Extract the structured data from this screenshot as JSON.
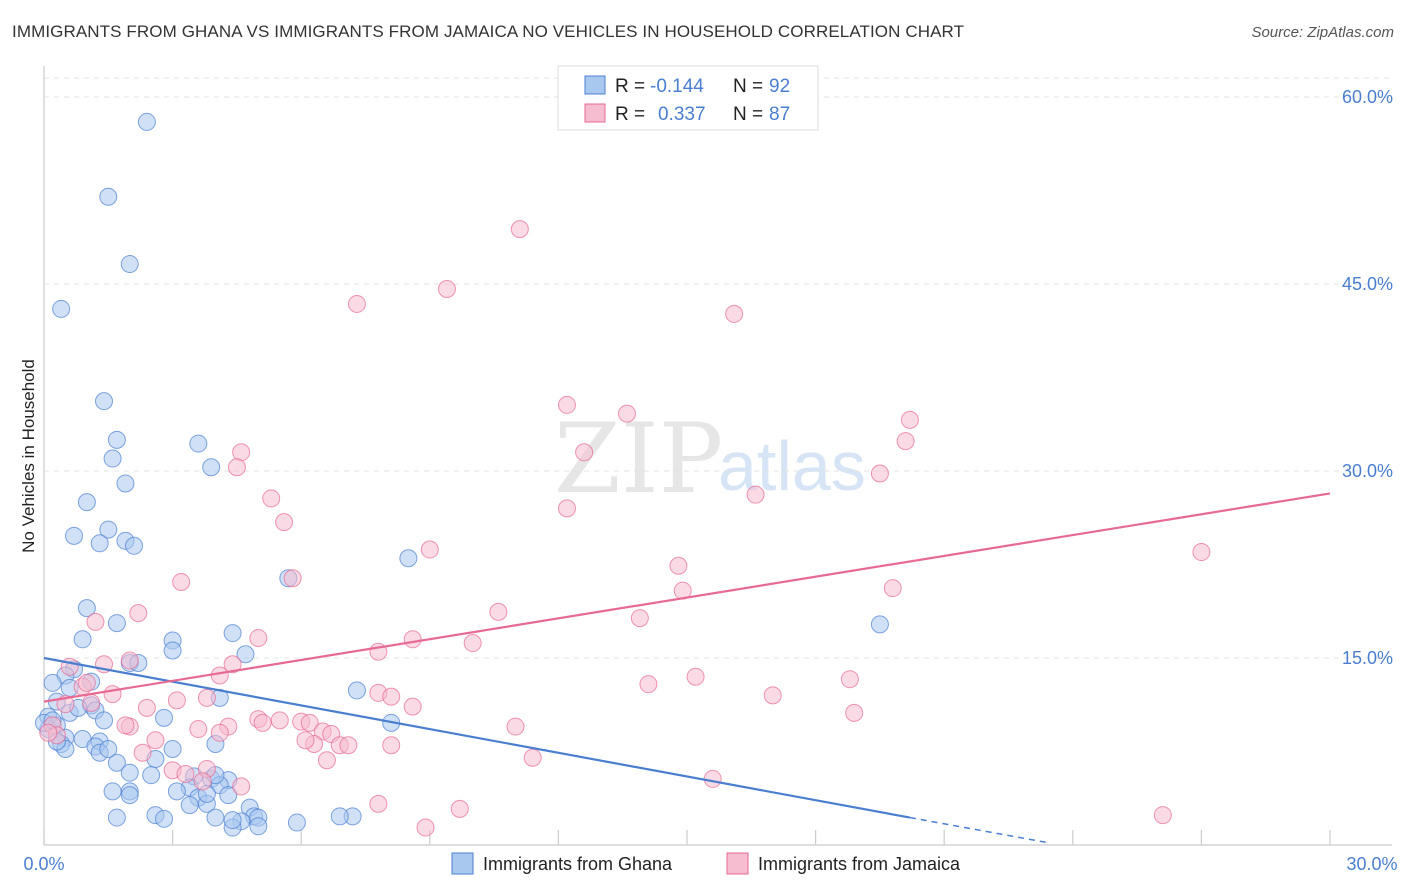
{
  "title": "IMMIGRANTS FROM GHANA VS IMMIGRANTS FROM JAMAICA NO VEHICLES IN HOUSEHOLD CORRELATION CHART",
  "source": "Source: ZipAtlas.com",
  "watermark": {
    "part1": "ZIP",
    "part2": "atlas"
  },
  "legend": {
    "rows": [
      {
        "r_label": "R =",
        "r_value": "-0.144",
        "n_label": "N =",
        "n_value": "92",
        "color": "#a9c8f0"
      },
      {
        "r_label": "R =",
        "r_value": "0.337",
        "n_label": "N =",
        "n_value": "87",
        "color": "#f6bcd0"
      }
    ]
  },
  "bottom_legend": [
    "Immigrants from Ghana",
    "Immigrants from Jamaica"
  ],
  "chart_data": {
    "type": "scatter",
    "title": "IMMIGRANTS FROM GHANA VS IMMIGRANTS FROM JAMAICA NO VEHICLES IN HOUSEHOLD CORRELATION CHART",
    "xlabel": "",
    "ylabel": "No Vehicles in Household",
    "xlim": [
      0,
      30
    ],
    "ylim": [
      0,
      62
    ],
    "x_tick_labels": [
      "0.0%",
      "30.0%"
    ],
    "y_ticks": [
      15,
      30,
      45,
      60
    ],
    "y_tick_labels": [
      "15.0%",
      "30.0%",
      "45.0%",
      "60.0%"
    ],
    "series": [
      {
        "name": "Immigrants from Ghana",
        "color": "#4a7fd0",
        "fill": "#a9c8f0",
        "trend": {
          "x0": 0,
          "y0": 15.0,
          "x1": 20.2,
          "y1": 2.2,
          "dash_to_x": 23.4,
          "dash_to_y": 0.2
        },
        "points": [
          [
            2.4,
            58.0
          ],
          [
            1.5,
            52.0
          ],
          [
            2.0,
            46.6
          ],
          [
            0.4,
            43.0
          ],
          [
            1.4,
            35.6
          ],
          [
            1.7,
            32.5
          ],
          [
            3.6,
            32.2
          ],
          [
            1.6,
            31.0
          ],
          [
            3.9,
            30.3
          ],
          [
            1.9,
            29.0
          ],
          [
            1.0,
            27.5
          ],
          [
            0.7,
            24.8
          ],
          [
            1.5,
            25.3
          ],
          [
            1.9,
            24.4
          ],
          [
            2.1,
            24.0
          ],
          [
            1.3,
            24.2
          ],
          [
            8.5,
            23.0
          ],
          [
            5.7,
            21.4
          ],
          [
            1.0,
            19.0
          ],
          [
            1.7,
            17.8
          ],
          [
            4.4,
            17.0
          ],
          [
            0.9,
            16.5
          ],
          [
            3.0,
            16.4
          ],
          [
            2.0,
            14.6
          ],
          [
            4.7,
            15.3
          ],
          [
            3.0,
            15.6
          ],
          [
            0.7,
            14.1
          ],
          [
            0.5,
            13.6
          ],
          [
            1.1,
            13.1
          ],
          [
            0.2,
            13.0
          ],
          [
            0.6,
            12.6
          ],
          [
            7.3,
            12.4
          ],
          [
            4.1,
            11.8
          ],
          [
            0.3,
            11.5
          ],
          [
            1.1,
            11.2
          ],
          [
            1.2,
            10.8
          ],
          [
            0.6,
            10.6
          ],
          [
            0.1,
            10.3
          ],
          [
            1.4,
            10.0
          ],
          [
            2.8,
            10.2
          ],
          [
            8.1,
            9.8
          ],
          [
            0.3,
            9.6
          ],
          [
            0.1,
            9.3
          ],
          [
            0.5,
            8.6
          ],
          [
            0.9,
            8.5
          ],
          [
            1.3,
            8.3
          ],
          [
            0.4,
            8.1
          ],
          [
            1.2,
            7.9
          ],
          [
            0.5,
            7.7
          ],
          [
            3.0,
            7.7
          ],
          [
            4.0,
            8.1
          ],
          [
            1.3,
            7.4
          ],
          [
            2.6,
            6.9
          ],
          [
            1.7,
            6.6
          ],
          [
            2.0,
            5.8
          ],
          [
            2.5,
            5.6
          ],
          [
            3.5,
            5.5
          ],
          [
            3.9,
            5.3
          ],
          [
            4.3,
            5.2
          ],
          [
            4.1,
            4.8
          ],
          [
            3.4,
            4.6
          ],
          [
            3.1,
            4.3
          ],
          [
            2.0,
            4.3
          ],
          [
            1.6,
            4.3
          ],
          [
            2.0,
            4.0
          ],
          [
            3.6,
            3.8
          ],
          [
            4.3,
            4.0
          ],
          [
            4.8,
            3.0
          ],
          [
            3.4,
            3.2
          ],
          [
            3.8,
            3.3
          ],
          [
            2.6,
            2.4
          ],
          [
            1.7,
            2.2
          ],
          [
            2.8,
            2.1
          ],
          [
            4.0,
            2.2
          ],
          [
            4.9,
            2.3
          ],
          [
            5.0,
            2.2
          ],
          [
            4.6,
            1.9
          ],
          [
            7.2,
            2.3
          ],
          [
            6.9,
            2.3
          ],
          [
            5.9,
            1.8
          ],
          [
            4.4,
            1.4
          ],
          [
            5.0,
            1.5
          ],
          [
            19.5,
            17.7
          ],
          [
            0.0,
            9.8
          ],
          [
            0.2,
            10.0
          ],
          [
            0.8,
            11.0
          ],
          [
            2.2,
            14.6
          ],
          [
            4.0,
            5.6
          ],
          [
            4.4,
            2.0
          ],
          [
            3.8,
            4.1
          ],
          [
            1.5,
            7.7
          ],
          [
            0.3,
            8.3
          ]
        ]
      },
      {
        "name": "Immigrants from Jamaica",
        "color": "#e76a95",
        "fill": "#f6bcd0",
        "trend": {
          "x0": 0,
          "y0": 11.5,
          "x1": 30,
          "y1": 28.2
        },
        "points": [
          [
            11.1,
            49.4
          ],
          [
            9.4,
            44.6
          ],
          [
            7.3,
            43.4
          ],
          [
            16.1,
            42.6
          ],
          [
            12.2,
            35.3
          ],
          [
            13.6,
            34.6
          ],
          [
            20.2,
            34.1
          ],
          [
            20.1,
            32.4
          ],
          [
            4.6,
            31.5
          ],
          [
            12.6,
            31.5
          ],
          [
            4.5,
            30.3
          ],
          [
            19.5,
            29.8
          ],
          [
            5.3,
            27.8
          ],
          [
            16.6,
            28.1
          ],
          [
            12.2,
            27.0
          ],
          [
            5.6,
            25.9
          ],
          [
            9.0,
            23.7
          ],
          [
            27.0,
            23.5
          ],
          [
            14.8,
            22.4
          ],
          [
            3.2,
            21.1
          ],
          [
            5.8,
            21.4
          ],
          [
            19.8,
            20.6
          ],
          [
            14.9,
            20.4
          ],
          [
            10.6,
            18.7
          ],
          [
            13.9,
            18.2
          ],
          [
            2.2,
            18.6
          ],
          [
            1.2,
            17.9
          ],
          [
            8.6,
            16.5
          ],
          [
            5.0,
            16.6
          ],
          [
            7.8,
            15.5
          ],
          [
            4.4,
            14.5
          ],
          [
            1.4,
            14.5
          ],
          [
            0.6,
            14.3
          ],
          [
            4.1,
            13.6
          ],
          [
            15.2,
            13.5
          ],
          [
            18.8,
            13.3
          ],
          [
            14.1,
            12.9
          ],
          [
            0.9,
            12.7
          ],
          [
            7.8,
            12.2
          ],
          [
            1.6,
            12.1
          ],
          [
            8.1,
            11.9
          ],
          [
            17.0,
            12.0
          ],
          [
            3.8,
            11.8
          ],
          [
            3.1,
            11.6
          ],
          [
            1.1,
            11.4
          ],
          [
            2.4,
            11.0
          ],
          [
            8.6,
            11.1
          ],
          [
            0.5,
            11.3
          ],
          [
            18.9,
            10.6
          ],
          [
            5.0,
            10.1
          ],
          [
            5.5,
            10.0
          ],
          [
            6.0,
            9.9
          ],
          [
            5.1,
            9.8
          ],
          [
            6.2,
            9.8
          ],
          [
            2.0,
            9.5
          ],
          [
            4.3,
            9.5
          ],
          [
            11.0,
            9.5
          ],
          [
            3.6,
            9.3
          ],
          [
            1.9,
            9.6
          ],
          [
            0.2,
            9.6
          ],
          [
            6.5,
            9.1
          ],
          [
            0.3,
            8.8
          ],
          [
            6.7,
            8.9
          ],
          [
            4.1,
            9.0
          ],
          [
            6.3,
            8.1
          ],
          [
            6.9,
            8.0
          ],
          [
            7.1,
            8.0
          ],
          [
            8.1,
            8.0
          ],
          [
            2.6,
            8.4
          ],
          [
            2.3,
            7.4
          ],
          [
            6.1,
            8.4
          ],
          [
            6.6,
            6.8
          ],
          [
            11.4,
            7.0
          ],
          [
            3.0,
            6.0
          ],
          [
            3.3,
            5.7
          ],
          [
            3.8,
            6.1
          ],
          [
            3.7,
            5.1
          ],
          [
            15.6,
            5.3
          ],
          [
            4.6,
            4.7
          ],
          [
            7.8,
            3.3
          ],
          [
            9.7,
            2.9
          ],
          [
            26.1,
            2.4
          ],
          [
            8.9,
            1.4
          ],
          [
            0.1,
            9.0
          ],
          [
            1.0,
            13.0
          ],
          [
            2.0,
            14.8
          ],
          [
            10.0,
            16.2
          ]
        ]
      }
    ]
  }
}
